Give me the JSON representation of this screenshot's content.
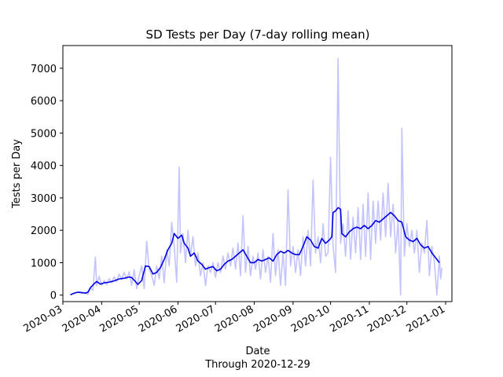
{
  "chart_data": {
    "type": "line",
    "title": "SD Tests per Day (7-day rolling mean)",
    "xlabel": "Date",
    "xlabel_sub": "Through 2020-12-29",
    "ylabel": "Tests per Day",
    "x_type": "date",
    "xlim": [
      "2020-03-01",
      "2021-01-06"
    ],
    "ylim": [
      -200,
      7700
    ],
    "x_ticks": [
      "2020-03",
      "2020-04",
      "2020-05",
      "2020-06",
      "2020-07",
      "2020-08",
      "2020-09",
      "2020-10",
      "2020-11",
      "2020-12",
      "2021-01"
    ],
    "y_ticks": [
      0,
      1000,
      2000,
      3000,
      4000,
      5000,
      6000,
      7000
    ],
    "grid": false,
    "legend": "none",
    "series": [
      {
        "role": "daily",
        "color": "#c3c3ff",
        "points": [
          [
            "2020-03-07",
            10
          ],
          [
            "2020-03-10",
            60
          ],
          [
            "2020-03-13",
            90
          ],
          [
            "2020-03-16",
            50
          ],
          [
            "2020-03-19",
            80
          ],
          [
            "2020-03-21",
            20
          ],
          [
            "2020-03-23",
            220
          ],
          [
            "2020-03-25",
            150
          ],
          [
            "2020-03-27",
            1170
          ],
          [
            "2020-03-28",
            300
          ],
          [
            "2020-03-30",
            580
          ],
          [
            "2020-04-01",
            300
          ],
          [
            "2020-04-03",
            450
          ],
          [
            "2020-04-05",
            320
          ],
          [
            "2020-04-07",
            500
          ],
          [
            "2020-04-09",
            380
          ],
          [
            "2020-04-11",
            560
          ],
          [
            "2020-04-13",
            420
          ],
          [
            "2020-04-15",
            650
          ],
          [
            "2020-04-17",
            480
          ],
          [
            "2020-04-19",
            700
          ],
          [
            "2020-04-21",
            500
          ],
          [
            "2020-04-23",
            720
          ],
          [
            "2020-04-25",
            300
          ],
          [
            "2020-04-27",
            780
          ],
          [
            "2020-04-29",
            200
          ],
          [
            "2020-05-01",
            600
          ],
          [
            "2020-05-03",
            900
          ],
          [
            "2020-05-05",
            200
          ],
          [
            "2020-05-07",
            1660
          ],
          [
            "2020-05-09",
            800
          ],
          [
            "2020-05-11",
            600
          ],
          [
            "2020-05-13",
            300
          ],
          [
            "2020-05-15",
            900
          ],
          [
            "2020-05-17",
            500
          ],
          [
            "2020-05-19",
            1200
          ],
          [
            "2020-05-21",
            380
          ],
          [
            "2020-05-23",
            1400
          ],
          [
            "2020-05-25",
            900
          ],
          [
            "2020-05-27",
            2250
          ],
          [
            "2020-05-29",
            1500
          ],
          [
            "2020-05-31",
            400
          ],
          [
            "2020-06-02",
            3950
          ],
          [
            "2020-06-03",
            1300
          ],
          [
            "2020-06-05",
            1900
          ],
          [
            "2020-06-07",
            1000
          ],
          [
            "2020-06-09",
            2000
          ],
          [
            "2020-06-11",
            1200
          ],
          [
            "2020-06-13",
            1800
          ],
          [
            "2020-06-15",
            900
          ],
          [
            "2020-06-17",
            1300
          ],
          [
            "2020-06-19",
            600
          ],
          [
            "2020-06-21",
            1000
          ],
          [
            "2020-06-23",
            300
          ],
          [
            "2020-06-25",
            900
          ],
          [
            "2020-06-27",
            700
          ],
          [
            "2020-06-29",
            1000
          ],
          [
            "2020-07-01",
            550
          ],
          [
            "2020-07-03",
            1000
          ],
          [
            "2020-07-05",
            700
          ],
          [
            "2020-07-07",
            1200
          ],
          [
            "2020-07-09",
            800
          ],
          [
            "2020-07-11",
            1300
          ],
          [
            "2020-07-13",
            900
          ],
          [
            "2020-07-15",
            1450
          ],
          [
            "2020-07-17",
            800
          ],
          [
            "2020-07-19",
            1600
          ],
          [
            "2020-07-21",
            600
          ],
          [
            "2020-07-23",
            2450
          ],
          [
            "2020-07-25",
            700
          ],
          [
            "2020-07-27",
            1500
          ],
          [
            "2020-07-29",
            600
          ],
          [
            "2020-07-31",
            1200
          ],
          [
            "2020-08-02",
            800
          ],
          [
            "2020-08-04",
            1300
          ],
          [
            "2020-08-06",
            500
          ],
          [
            "2020-08-08",
            1400
          ],
          [
            "2020-08-10",
            700
          ],
          [
            "2020-08-12",
            1200
          ],
          [
            "2020-08-14",
            400
          ],
          [
            "2020-08-16",
            1900
          ],
          [
            "2020-08-18",
            600
          ],
          [
            "2020-08-20",
            1400
          ],
          [
            "2020-08-22",
            300
          ],
          [
            "2020-08-24",
            1300
          ],
          [
            "2020-08-26",
            300
          ],
          [
            "2020-08-28",
            3250
          ],
          [
            "2020-08-30",
            900
          ],
          [
            "2020-09-01",
            1500
          ],
          [
            "2020-09-03",
            700
          ],
          [
            "2020-09-05",
            1400
          ],
          [
            "2020-09-07",
            600
          ],
          [
            "2020-09-09",
            1800
          ],
          [
            "2020-09-11",
            900
          ],
          [
            "2020-09-13",
            2000
          ],
          [
            "2020-09-15",
            900
          ],
          [
            "2020-09-17",
            3550
          ],
          [
            "2020-09-19",
            1300
          ],
          [
            "2020-09-21",
            1800
          ],
          [
            "2020-09-23",
            1000
          ],
          [
            "2020-09-25",
            2200
          ],
          [
            "2020-09-27",
            1200
          ],
          [
            "2020-09-29",
            1300
          ],
          [
            "2020-10-01",
            4250
          ],
          [
            "2020-10-03",
            1500
          ],
          [
            "2020-10-05",
            700
          ],
          [
            "2020-10-07",
            7300
          ],
          [
            "2020-10-09",
            1600
          ],
          [
            "2020-10-11",
            2200
          ],
          [
            "2020-10-13",
            1200
          ],
          [
            "2020-10-15",
            2600
          ],
          [
            "2020-10-17",
            1100
          ],
          [
            "2020-10-19",
            2400
          ],
          [
            "2020-10-21",
            1300
          ],
          [
            "2020-10-23",
            2700
          ],
          [
            "2020-10-25",
            1100
          ],
          [
            "2020-10-27",
            2800
          ],
          [
            "2020-10-29",
            1200
          ],
          [
            "2020-10-31",
            3150
          ],
          [
            "2020-11-02",
            1100
          ],
          [
            "2020-11-04",
            2900
          ],
          [
            "2020-11-06",
            1600
          ],
          [
            "2020-11-08",
            2900
          ],
          [
            "2020-11-10",
            1700
          ],
          [
            "2020-11-12",
            3150
          ],
          [
            "2020-11-14",
            1800
          ],
          [
            "2020-11-16",
            3450
          ],
          [
            "2020-11-18",
            1800
          ],
          [
            "2020-11-20",
            2800
          ],
          [
            "2020-11-22",
            1300
          ],
          [
            "2020-11-24",
            2300
          ],
          [
            "2020-11-26",
            0
          ],
          [
            "2020-11-27",
            5150
          ],
          [
            "2020-11-29",
            1200
          ],
          [
            "2020-12-01",
            2200
          ],
          [
            "2020-12-03",
            1500
          ],
          [
            "2020-12-05",
            2000
          ],
          [
            "2020-12-07",
            1300
          ],
          [
            "2020-12-09",
            2000
          ],
          [
            "2020-12-11",
            700
          ],
          [
            "2020-12-13",
            1600
          ],
          [
            "2020-12-15",
            1300
          ],
          [
            "2020-12-17",
            2300
          ],
          [
            "2020-12-19",
            600
          ],
          [
            "2020-12-21",
            1500
          ],
          [
            "2020-12-23",
            1000
          ],
          [
            "2020-12-25",
            0
          ],
          [
            "2020-12-27",
            1200
          ],
          [
            "2020-12-28",
            500
          ],
          [
            "2020-12-29",
            850
          ]
        ]
      },
      {
        "role": "rolling-mean",
        "color": "#0000e6",
        "points": [
          [
            "2020-03-07",
            10
          ],
          [
            "2020-03-10",
            60
          ],
          [
            "2020-03-13",
            90
          ],
          [
            "2020-03-16",
            80
          ],
          [
            "2020-03-19",
            60
          ],
          [
            "2020-03-21",
            90
          ],
          [
            "2020-03-23",
            230
          ],
          [
            "2020-03-26",
            350
          ],
          [
            "2020-03-28",
            420
          ],
          [
            "2020-03-31",
            340
          ],
          [
            "2020-04-03",
            380
          ],
          [
            "2020-04-07",
            400
          ],
          [
            "2020-04-11",
            440
          ],
          [
            "2020-04-15",
            500
          ],
          [
            "2020-04-19",
            520
          ],
          [
            "2020-04-23",
            560
          ],
          [
            "2020-04-25",
            540
          ],
          [
            "2020-04-27",
            460
          ],
          [
            "2020-04-30",
            330
          ],
          [
            "2020-05-03",
            450
          ],
          [
            "2020-05-06",
            900
          ],
          [
            "2020-05-09",
            880
          ],
          [
            "2020-05-12",
            650
          ],
          [
            "2020-05-15",
            700
          ],
          [
            "2020-05-18",
            850
          ],
          [
            "2020-05-21",
            1100
          ],
          [
            "2020-05-24",
            1400
          ],
          [
            "2020-05-27",
            1600
          ],
          [
            "2020-05-29",
            1900
          ],
          [
            "2020-06-01",
            1750
          ],
          [
            "2020-06-04",
            1850
          ],
          [
            "2020-06-06",
            1600
          ],
          [
            "2020-06-09",
            1450
          ],
          [
            "2020-06-11",
            1200
          ],
          [
            "2020-06-14",
            1300
          ],
          [
            "2020-06-17",
            1050
          ],
          [
            "2020-06-20",
            950
          ],
          [
            "2020-06-23",
            800
          ],
          [
            "2020-06-26",
            850
          ],
          [
            "2020-06-29",
            880
          ],
          [
            "2020-07-02",
            750
          ],
          [
            "2020-07-05",
            800
          ],
          [
            "2020-07-08",
            950
          ],
          [
            "2020-07-11",
            1050
          ],
          [
            "2020-07-14",
            1100
          ],
          [
            "2020-07-17",
            1200
          ],
          [
            "2020-07-20",
            1300
          ],
          [
            "2020-07-23",
            1400
          ],
          [
            "2020-07-26",
            1200
          ],
          [
            "2020-07-29",
            1000
          ],
          [
            "2020-08-01",
            1000
          ],
          [
            "2020-08-04",
            1100
          ],
          [
            "2020-08-07",
            1050
          ],
          [
            "2020-08-10",
            1100
          ],
          [
            "2020-08-13",
            1150
          ],
          [
            "2020-08-16",
            1050
          ],
          [
            "2020-08-19",
            1250
          ],
          [
            "2020-08-22",
            1350
          ],
          [
            "2020-08-25",
            1300
          ],
          [
            "2020-08-28",
            1380
          ],
          [
            "2020-08-31",
            1300
          ],
          [
            "2020-09-03",
            1250
          ],
          [
            "2020-09-06",
            1250
          ],
          [
            "2020-09-09",
            1500
          ],
          [
            "2020-09-12",
            1800
          ],
          [
            "2020-09-15",
            1700
          ],
          [
            "2020-09-18",
            1500
          ],
          [
            "2020-09-21",
            1450
          ],
          [
            "2020-09-24",
            1750
          ],
          [
            "2020-09-27",
            1600
          ],
          [
            "2020-09-30",
            1700
          ],
          [
            "2020-10-02",
            1800
          ],
          [
            "2020-10-03",
            2550
          ],
          [
            "2020-10-05",
            2600
          ],
          [
            "2020-10-07",
            2700
          ],
          [
            "2020-10-09",
            2650
          ],
          [
            "2020-10-10",
            1900
          ],
          [
            "2020-10-13",
            1800
          ],
          [
            "2020-10-16",
            1950
          ],
          [
            "2020-10-19",
            2050
          ],
          [
            "2020-10-22",
            2100
          ],
          [
            "2020-10-25",
            2050
          ],
          [
            "2020-10-28",
            2150
          ],
          [
            "2020-10-31",
            2050
          ],
          [
            "2020-11-03",
            2150
          ],
          [
            "2020-11-06",
            2300
          ],
          [
            "2020-11-09",
            2250
          ],
          [
            "2020-11-12",
            2350
          ],
          [
            "2020-11-15",
            2450
          ],
          [
            "2020-11-18",
            2550
          ],
          [
            "2020-11-21",
            2450
          ],
          [
            "2020-11-24",
            2300
          ],
          [
            "2020-11-27",
            2250
          ],
          [
            "2020-11-30",
            1800
          ],
          [
            "2020-12-03",
            1700
          ],
          [
            "2020-12-06",
            1650
          ],
          [
            "2020-12-09",
            1750
          ],
          [
            "2020-12-12",
            1550
          ],
          [
            "2020-12-15",
            1450
          ],
          [
            "2020-12-18",
            1500
          ],
          [
            "2020-12-21",
            1300
          ],
          [
            "2020-12-24",
            1150
          ],
          [
            "2020-12-27",
            1000
          ]
        ]
      }
    ]
  }
}
